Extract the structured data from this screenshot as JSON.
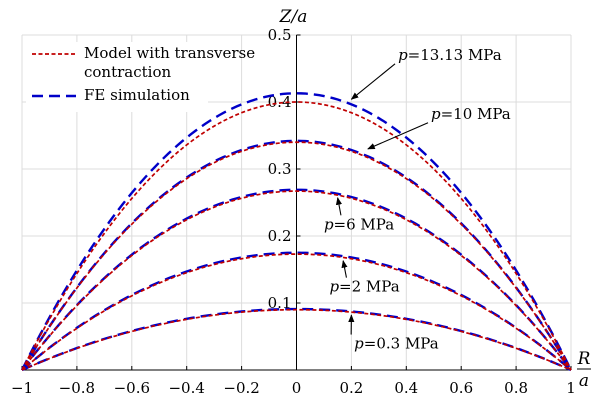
{
  "chart_data": {
    "type": "line",
    "title": "",
    "xlabel": "R/a",
    "xlabel_num": "R",
    "xlabel_den": "a",
    "ylabel": "Z/a",
    "xlim": [
      -1,
      1
    ],
    "ylim": [
      0,
      0.5
    ],
    "grid": true,
    "xticks": [
      -1,
      -0.8,
      -0.6,
      -0.4,
      -0.2,
      0,
      0.2,
      0.4,
      0.6,
      0.8,
      1
    ],
    "xtick_labels": [
      "−1",
      "−0.8",
      "−0.6",
      "−0.4",
      "−0.2",
      "0",
      "0.2",
      "0.4",
      "0.6",
      "0.8",
      "1"
    ],
    "yticks": [
      0.1,
      0.2,
      0.3,
      0.4,
      0.5
    ],
    "ytick_labels": [
      "0.1",
      "0.2",
      "0.3",
      "0.4",
      "0.5"
    ],
    "legend_position": "top-left",
    "series": [
      {
        "name": "Model with transverse contraction",
        "legend_lines": [
          "Model with transverse",
          "contraction"
        ],
        "color": "#c00000",
        "dash": "short",
        "curves": [
          {
            "pressure": "p=0.3 MPa",
            "peak": 0.09
          },
          {
            "pressure": "p=2 MPa",
            "peak": 0.173
          },
          {
            "pressure": "p=6 MPa",
            "peak": 0.267
          },
          {
            "pressure": "p=10 MPa",
            "peak": 0.34
          },
          {
            "pressure": "p=13.13 MPa",
            "peak": 0.4
          }
        ]
      },
      {
        "name": "FE simulation",
        "legend_lines": [
          "FE simulation"
        ],
        "color": "#0000c8",
        "dash": "long",
        "curves": [
          {
            "pressure": "p=0.3 MPa",
            "peak": 0.091
          },
          {
            "pressure": "p=2 MPa",
            "peak": 0.175
          },
          {
            "pressure": "p=6 MPa",
            "peak": 0.269
          },
          {
            "pressure": "p=10 MPa",
            "peak": 0.342
          },
          {
            "pressure": "p=13.13 MPa",
            "peak": 0.413
          }
        ]
      }
    ],
    "annotations": [
      {
        "text_prefix": "p",
        "text_value": "=13.13 MPa",
        "label_x": 0.37,
        "label_y": 0.463,
        "arrow_x": 0.2,
        "arrow_y": 0.404
      },
      {
        "text_prefix": "p",
        "text_value": "=10 MPa",
        "label_x": 0.49,
        "label_y": 0.375,
        "arrow_x": 0.26,
        "arrow_y": 0.33
      },
      {
        "text_prefix": "p",
        "text_value": "=6 MPa",
        "label_x": 0.1,
        "label_y": 0.21,
        "arrow_x": 0.15,
        "arrow_y": 0.257
      },
      {
        "text_prefix": "p",
        "text_value": "=2 MPa",
        "label_x": 0.12,
        "label_y": 0.117,
        "arrow_x": 0.17,
        "arrow_y": 0.163
      },
      {
        "text_prefix": "p",
        "text_value": "=0.3 MPa",
        "label_x": 0.21,
        "label_y": 0.032,
        "arrow_x": 0.2,
        "arrow_y": 0.082
      }
    ]
  }
}
